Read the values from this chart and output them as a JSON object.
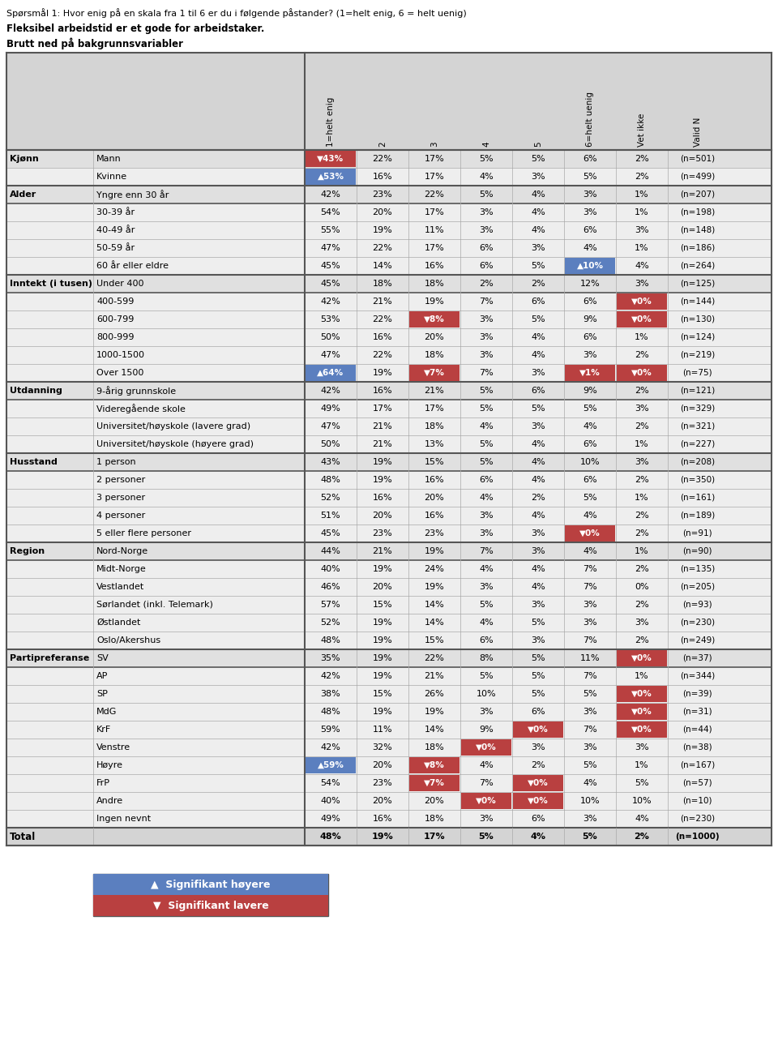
{
  "title_line1": "Spørsmål 1: Hvor enig på en skala fra 1 til 6 er du i følgende påstander? (1=helt enig, 6 = helt uenig)",
  "title_line2": "Fleksibel arbeidstid er et gode for arbeidstaker.",
  "title_line3": "Brutt ned på bakgrunnsvariabler",
  "col_headers": [
    "1=helt enig",
    "2",
    "3",
    "4",
    "5",
    "6=helt uenig",
    "Vet ikke",
    "Valid N"
  ],
  "rows": [
    {
      "group": "Kjønn",
      "label": "Mann",
      "vals": [
        "43%",
        "22%",
        "17%",
        "5%",
        "5%",
        "6%",
        "2%"
      ],
      "n": "(n=501)",
      "sig_col": [
        {
          "col": 0,
          "type": "down"
        }
      ]
    },
    {
      "group": "",
      "label": "Kvinne",
      "vals": [
        "53%",
        "16%",
        "17%",
        "4%",
        "3%",
        "5%",
        "2%"
      ],
      "n": "(n=499)",
      "sig_col": [
        {
          "col": 0,
          "type": "up"
        }
      ]
    },
    {
      "group": "Alder",
      "label": "Yngre enn 30 år",
      "vals": [
        "42%",
        "23%",
        "22%",
        "5%",
        "4%",
        "3%",
        "1%"
      ],
      "n": "(n=207)",
      "sig_col": []
    },
    {
      "group": "",
      "label": "30-39 år",
      "vals": [
        "54%",
        "20%",
        "17%",
        "3%",
        "4%",
        "3%",
        "1%"
      ],
      "n": "(n=198)",
      "sig_col": []
    },
    {
      "group": "",
      "label": "40-49 år",
      "vals": [
        "55%",
        "19%",
        "11%",
        "3%",
        "4%",
        "6%",
        "3%"
      ],
      "n": "(n=148)",
      "sig_col": []
    },
    {
      "group": "",
      "label": "50-59 år",
      "vals": [
        "47%",
        "22%",
        "17%",
        "6%",
        "3%",
        "4%",
        "1%"
      ],
      "n": "(n=186)",
      "sig_col": []
    },
    {
      "group": "",
      "label": "60 år eller eldre",
      "vals": [
        "45%",
        "14%",
        "16%",
        "6%",
        "5%",
        "10%",
        "4%"
      ],
      "n": "(n=264)",
      "sig_col": [
        {
          "col": 5,
          "type": "up"
        }
      ]
    },
    {
      "group": "Inntekt (i tusen)",
      "label": "Under 400",
      "vals": [
        "45%",
        "18%",
        "18%",
        "2%",
        "2%",
        "12%",
        "3%"
      ],
      "n": "(n=125)",
      "sig_col": []
    },
    {
      "group": "",
      "label": "400-599",
      "vals": [
        "42%",
        "21%",
        "19%",
        "7%",
        "6%",
        "6%",
        "0%"
      ],
      "n": "(n=144)",
      "sig_col": [
        {
          "col": 6,
          "type": "down"
        }
      ]
    },
    {
      "group": "",
      "label": "600-799",
      "vals": [
        "53%",
        "22%",
        "8%",
        "3%",
        "5%",
        "9%",
        "0%"
      ],
      "n": "(n=130)",
      "sig_col": [
        {
          "col": 2,
          "type": "down"
        },
        {
          "col": 6,
          "type": "down"
        }
      ]
    },
    {
      "group": "",
      "label": "800-999",
      "vals": [
        "50%",
        "16%",
        "20%",
        "3%",
        "4%",
        "6%",
        "1%"
      ],
      "n": "(n=124)",
      "sig_col": []
    },
    {
      "group": "",
      "label": "1000-1500",
      "vals": [
        "47%",
        "22%",
        "18%",
        "3%",
        "4%",
        "3%",
        "2%"
      ],
      "n": "(n=219)",
      "sig_col": []
    },
    {
      "group": "",
      "label": "Over 1500",
      "vals": [
        "64%",
        "19%",
        "7%",
        "7%",
        "3%",
        "1%",
        "0%"
      ],
      "n": "(n=75)",
      "sig_col": [
        {
          "col": 0,
          "type": "up"
        },
        {
          "col": 2,
          "type": "down"
        },
        {
          "col": 5,
          "type": "down"
        },
        {
          "col": 6,
          "type": "down"
        }
      ]
    },
    {
      "group": "Utdanning",
      "label": "9-årig grunnskole",
      "vals": [
        "42%",
        "16%",
        "21%",
        "5%",
        "6%",
        "9%",
        "2%"
      ],
      "n": "(n=121)",
      "sig_col": []
    },
    {
      "group": "",
      "label": "Videregående skole",
      "vals": [
        "49%",
        "17%",
        "17%",
        "5%",
        "5%",
        "5%",
        "3%"
      ],
      "n": "(n=329)",
      "sig_col": []
    },
    {
      "group": "",
      "label": "Universitet/høyskole (lavere grad)",
      "vals": [
        "47%",
        "21%",
        "18%",
        "4%",
        "3%",
        "4%",
        "2%"
      ],
      "n": "(n=321)",
      "sig_col": []
    },
    {
      "group": "",
      "label": "Universitet/høyskole (høyere grad)",
      "vals": [
        "50%",
        "21%",
        "13%",
        "5%",
        "4%",
        "6%",
        "1%"
      ],
      "n": "(n=227)",
      "sig_col": []
    },
    {
      "group": "Husstand",
      "label": "1 person",
      "vals": [
        "43%",
        "19%",
        "15%",
        "5%",
        "4%",
        "10%",
        "3%"
      ],
      "n": "(n=208)",
      "sig_col": []
    },
    {
      "group": "",
      "label": "2 personer",
      "vals": [
        "48%",
        "19%",
        "16%",
        "6%",
        "4%",
        "6%",
        "2%"
      ],
      "n": "(n=350)",
      "sig_col": []
    },
    {
      "group": "",
      "label": "3 personer",
      "vals": [
        "52%",
        "16%",
        "20%",
        "4%",
        "2%",
        "5%",
        "1%"
      ],
      "n": "(n=161)",
      "sig_col": []
    },
    {
      "group": "",
      "label": "4 personer",
      "vals": [
        "51%",
        "20%",
        "16%",
        "3%",
        "4%",
        "4%",
        "2%"
      ],
      "n": "(n=189)",
      "sig_col": []
    },
    {
      "group": "",
      "label": "5 eller flere personer",
      "vals": [
        "45%",
        "23%",
        "23%",
        "3%",
        "3%",
        "0%",
        "2%"
      ],
      "n": "(n=91)",
      "sig_col": [
        {
          "col": 5,
          "type": "down"
        }
      ]
    },
    {
      "group": "Region",
      "label": "Nord-Norge",
      "vals": [
        "44%",
        "21%",
        "19%",
        "7%",
        "3%",
        "4%",
        "1%"
      ],
      "n": "(n=90)",
      "sig_col": []
    },
    {
      "group": "",
      "label": "Midt-Norge",
      "vals": [
        "40%",
        "19%",
        "24%",
        "4%",
        "4%",
        "7%",
        "2%"
      ],
      "n": "(n=135)",
      "sig_col": []
    },
    {
      "group": "",
      "label": "Vestlandet",
      "vals": [
        "46%",
        "20%",
        "19%",
        "3%",
        "4%",
        "7%",
        "0%"
      ],
      "n": "(n=205)",
      "sig_col": []
    },
    {
      "group": "",
      "label": "Sørlandet (inkl. Telemark)",
      "vals": [
        "57%",
        "15%",
        "14%",
        "5%",
        "3%",
        "3%",
        "2%"
      ],
      "n": "(n=93)",
      "sig_col": []
    },
    {
      "group": "",
      "label": "Østlandet",
      "vals": [
        "52%",
        "19%",
        "14%",
        "4%",
        "5%",
        "3%",
        "3%"
      ],
      "n": "(n=230)",
      "sig_col": []
    },
    {
      "group": "",
      "label": "Oslo/Akershus",
      "vals": [
        "48%",
        "19%",
        "15%",
        "6%",
        "3%",
        "7%",
        "2%"
      ],
      "n": "(n=249)",
      "sig_col": []
    },
    {
      "group": "Partipreferanse",
      "label": "SV",
      "vals": [
        "35%",
        "19%",
        "22%",
        "8%",
        "5%",
        "11%",
        "0%"
      ],
      "n": "(n=37)",
      "sig_col": [
        {
          "col": 6,
          "type": "down"
        }
      ]
    },
    {
      "group": "",
      "label": "AP",
      "vals": [
        "42%",
        "19%",
        "21%",
        "5%",
        "5%",
        "7%",
        "1%"
      ],
      "n": "(n=344)",
      "sig_col": []
    },
    {
      "group": "",
      "label": "SP",
      "vals": [
        "38%",
        "15%",
        "26%",
        "10%",
        "5%",
        "5%",
        "0%"
      ],
      "n": "(n=39)",
      "sig_col": [
        {
          "col": 6,
          "type": "down"
        }
      ]
    },
    {
      "group": "",
      "label": "MdG",
      "vals": [
        "48%",
        "19%",
        "19%",
        "3%",
        "6%",
        "3%",
        "0%"
      ],
      "n": "(n=31)",
      "sig_col": [
        {
          "col": 6,
          "type": "down"
        }
      ]
    },
    {
      "group": "",
      "label": "KrF",
      "vals": [
        "59%",
        "11%",
        "14%",
        "9%",
        "0%",
        "7%",
        "0%"
      ],
      "n": "(n=44)",
      "sig_col": [
        {
          "col": 4,
          "type": "down"
        },
        {
          "col": 6,
          "type": "down"
        }
      ]
    },
    {
      "group": "",
      "label": "Venstre",
      "vals": [
        "42%",
        "32%",
        "18%",
        "0%",
        "3%",
        "3%",
        "3%"
      ],
      "n": "(n=38)",
      "sig_col": [
        {
          "col": 3,
          "type": "down"
        }
      ]
    },
    {
      "group": "",
      "label": "Høyre",
      "vals": [
        "59%",
        "20%",
        "8%",
        "4%",
        "2%",
        "5%",
        "1%"
      ],
      "n": "(n=167)",
      "sig_col": [
        {
          "col": 0,
          "type": "up"
        },
        {
          "col": 2,
          "type": "down"
        }
      ]
    },
    {
      "group": "",
      "label": "FrP",
      "vals": [
        "54%",
        "23%",
        "7%",
        "7%",
        "0%",
        "4%",
        "5%"
      ],
      "n": "(n=57)",
      "sig_col": [
        {
          "col": 2,
          "type": "down"
        },
        {
          "col": 4,
          "type": "down"
        }
      ]
    },
    {
      "group": "",
      "label": "Andre",
      "vals": [
        "40%",
        "20%",
        "20%",
        "0%",
        "0%",
        "10%",
        "10%"
      ],
      "n": "(n=10)",
      "sig_col": [
        {
          "col": 3,
          "type": "down"
        },
        {
          "col": 4,
          "type": "down"
        }
      ]
    },
    {
      "group": "",
      "label": "Ingen nevnt",
      "vals": [
        "49%",
        "16%",
        "18%",
        "3%",
        "6%",
        "3%",
        "4%"
      ],
      "n": "(n=230)",
      "sig_col": []
    }
  ],
  "total_row": {
    "label": "Total",
    "vals": [
      "48%",
      "19%",
      "17%",
      "5%",
      "4%",
      "5%",
      "2%"
    ],
    "n": "(n=1000)"
  },
  "color_up": "#5b7fbf",
  "color_down": "#b94040",
  "color_header_bg": "#d4d4d4",
  "color_group_bg": "#e0e0e0",
  "color_row_bg": "#eeeeee",
  "color_total_bg": "#d4d4d4",
  "color_border_thin": "#aaaaaa",
  "color_border_thick": "#555555",
  "color_border_group": "#777777"
}
